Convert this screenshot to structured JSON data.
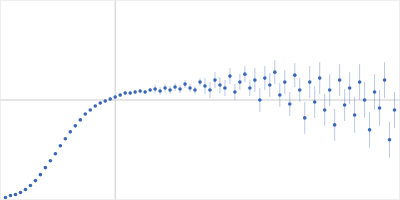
{
  "chart_data": {
    "type": "scatter",
    "x": [
      5,
      10,
      15,
      20,
      25,
      30,
      35,
      40,
      45,
      50,
      55,
      60,
      65,
      70,
      75,
      80,
      85,
      90,
      95,
      100,
      105,
      110,
      115,
      120,
      125,
      130,
      135,
      140,
      145,
      150,
      155,
      160,
      165,
      170,
      175,
      180,
      185,
      190,
      195,
      200,
      205,
      210,
      215,
      220,
      225,
      230,
      235,
      240,
      245,
      250,
      255,
      260,
      265,
      270,
      275,
      280,
      285,
      290,
      295,
      300,
      305,
      310,
      315,
      320,
      325,
      330,
      335,
      340,
      345,
      350,
      355,
      360,
      365,
      370,
      375,
      380,
      385,
      390,
      395
    ],
    "values": [
      2,
      4,
      5,
      7,
      10,
      14,
      19,
      25,
      32,
      39,
      46,
      54,
      61,
      68,
      74,
      80,
      86,
      90,
      94,
      97,
      99,
      101,
      103,
      105,
      107,
      107,
      108,
      109,
      108,
      110,
      111,
      109,
      112,
      110,
      113,
      111,
      116,
      112,
      110,
      118,
      114,
      110,
      120,
      115,
      112,
      124,
      108,
      118,
      126,
      112,
      120,
      100,
      122,
      115,
      128,
      105,
      118,
      96,
      125,
      110,
      82,
      118,
      98,
      122,
      90,
      110,
      75,
      120,
      95,
      112,
      85,
      118,
      100,
      70,
      108,
      92,
      120,
      60,
      90
    ],
    "errors": [
      1,
      1,
      1,
      1,
      1,
      1,
      1,
      1,
      1,
      1,
      1,
      1,
      1,
      1,
      1,
      1,
      1,
      1,
      1,
      1,
      2,
      2,
      2,
      2,
      2,
      2,
      2,
      2,
      2,
      2,
      4,
      4,
      4,
      4,
      4,
      4,
      4,
      4,
      4,
      4,
      8,
      8,
      8,
      8,
      8,
      8,
      8,
      8,
      8,
      8,
      12,
      12,
      12,
      12,
      12,
      12,
      12,
      12,
      12,
      12,
      16,
      16,
      16,
      16,
      16,
      16,
      16,
      16,
      16,
      16,
      18,
      18,
      18,
      18,
      18,
      18,
      18,
      18,
      18
    ],
    "color": "#3a66b8",
    "marker": "circle",
    "xlim": [
      0,
      400
    ],
    "ylim": [
      0,
      200
    ],
    "xticks": [
      115
    ],
    "yticks": [
      100
    ],
    "grid": true,
    "tick_labels": false
  }
}
